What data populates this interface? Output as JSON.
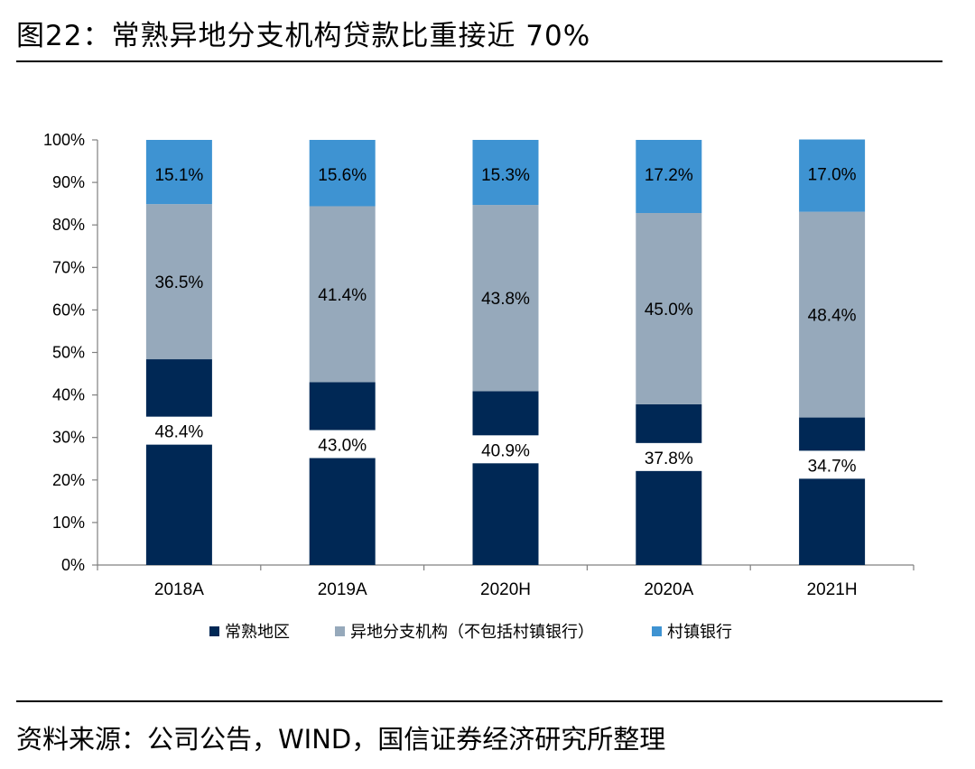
{
  "header": {
    "title": "图22：常熟异地分支机构贷款比重接近 70%"
  },
  "footer": {
    "source": "资料来源：公司公告，WIND，国信证券经济研究所整理"
  },
  "colors": {
    "changshu": "#002855",
    "offsite": "#96A9BB",
    "village": "#3E93D2"
  },
  "chart_data": {
    "type": "bar",
    "stacked": true,
    "percent": true,
    "categories": [
      "2018A",
      "2019A",
      "2020H",
      "2020A",
      "2021H"
    ],
    "series": [
      {
        "name": "常熟地区",
        "values": [
          48.4,
          43.0,
          40.9,
          37.8,
          34.7
        ]
      },
      {
        "name": "异地分支机构（不包括村镇银行）",
        "values": [
          36.5,
          41.4,
          43.8,
          45.0,
          48.4
        ]
      },
      {
        "name": "村镇银行",
        "values": [
          15.1,
          15.6,
          15.3,
          17.2,
          17.0
        ]
      }
    ],
    "data_labels": [
      [
        "48.4%",
        "43.0%",
        "40.9%",
        "37.8%",
        "34.7%"
      ],
      [
        "36.5%",
        "41.4%",
        "43.8%",
        "45.0%",
        "48.4%"
      ],
      [
        "15.1%",
        "15.6%",
        "15.3%",
        "17.2%",
        "17.0%"
      ]
    ],
    "y_ticks": [
      "0%",
      "10%",
      "20%",
      "30%",
      "40%",
      "50%",
      "60%",
      "70%",
      "80%",
      "90%",
      "100%"
    ],
    "ylim": [
      0,
      100
    ],
    "grid": false,
    "legend_position": "bottom"
  }
}
